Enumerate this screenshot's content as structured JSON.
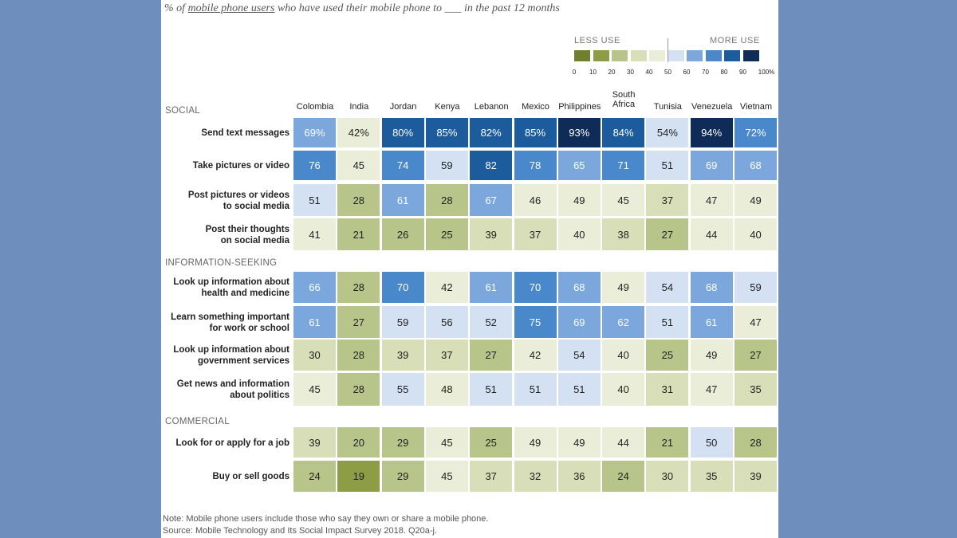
{
  "subtitle": {
    "prefix": "% of ",
    "underlined": "mobile phone users",
    "suffix": " who have used their mobile phone to ___ in the past 12 months"
  },
  "legend": {
    "less_label": "LESS USE",
    "more_label": "MORE USE",
    "colors": [
      "#6f7f2f",
      "#8c9d45",
      "#b8c58a",
      "#d8dfb8",
      "#eaeed8",
      "#d4e1f3",
      "#7ba7dd",
      "#4a88cc",
      "#1d5c9c",
      "#0f2b57"
    ],
    "ticks": [
      "0",
      "10",
      "20",
      "30",
      "40",
      "50",
      "60",
      "70",
      "80",
      "90",
      "100%"
    ]
  },
  "chart_data": {
    "type": "heatmap",
    "title": "% of mobile phone users who have used their mobile phone to ___ in the past 12 months",
    "countries": [
      "Colombia",
      "India",
      "Jordan",
      "Kenya",
      "Lebanon",
      "Mexico",
      "Philippines",
      "South Africa",
      "Tunisia",
      "Venezuela",
      "Vietnam"
    ],
    "sections": [
      {
        "name": "SOCIAL",
        "rows": [
          {
            "label": "Send text messages",
            "values": [
              69,
              42,
              80,
              85,
              82,
              85,
              93,
              84,
              54,
              94,
              72
            ],
            "display": [
              "69%",
              "42%",
              "80%",
              "85%",
              "82%",
              "85%",
              "93%",
              "84%",
              "54%",
              "94%",
              "72%"
            ]
          },
          {
            "label": "Take pictures or video",
            "values": [
              76,
              45,
              74,
              59,
              82,
              78,
              65,
              71,
              51,
              69,
              68
            ],
            "display": [
              "76",
              "45",
              "74",
              "59",
              "82",
              "78",
              "65",
              "71",
              "51",
              "69",
              "68"
            ]
          },
          {
            "label": "Post pictures or videos\nto social media",
            "values": [
              51,
              28,
              61,
              28,
              67,
              46,
              49,
              45,
              37,
              47,
              49
            ],
            "display": [
              "51",
              "28",
              "61",
              "28",
              "67",
              "46",
              "49",
              "45",
              "37",
              "47",
              "49"
            ]
          },
          {
            "label": "Post their thoughts\non social media",
            "values": [
              41,
              21,
              26,
              25,
              39,
              37,
              40,
              38,
              27,
              44,
              40
            ],
            "display": [
              "41",
              "21",
              "26",
              "25",
              "39",
              "37",
              "40",
              "38",
              "27",
              "44",
              "40"
            ]
          }
        ]
      },
      {
        "name": "INFORMATION-SEEKING",
        "rows": [
          {
            "label": "Look up information about\nhealth and medicine",
            "values": [
              66,
              28,
              70,
              42,
              61,
              70,
              68,
              49,
              54,
              68,
              59
            ],
            "display": [
              "66",
              "28",
              "70",
              "42",
              "61",
              "70",
              "68",
              "49",
              "54",
              "68",
              "59"
            ]
          },
          {
            "label": "Learn something important\nfor work or school",
            "values": [
              61,
              27,
              59,
              56,
              52,
              75,
              69,
              62,
              51,
              61,
              47
            ],
            "display": [
              "61",
              "27",
              "59",
              "56",
              "52",
              "75",
              "69",
              "62",
              "51",
              "61",
              "47"
            ]
          },
          {
            "label": "Look up information about\ngovernment services",
            "values": [
              30,
              28,
              39,
              37,
              27,
              42,
              54,
              40,
              25,
              49,
              27
            ],
            "display": [
              "30",
              "28",
              "39",
              "37",
              "27",
              "42",
              "54",
              "40",
              "25",
              "49",
              "27"
            ]
          },
          {
            "label": "Get news and information\nabout politics",
            "values": [
              45,
              28,
              55,
              48,
              51,
              51,
              51,
              40,
              31,
              47,
              35
            ],
            "display": [
              "45",
              "28",
              "55",
              "48",
              "51",
              "51",
              "51",
              "40",
              "31",
              "47",
              "35"
            ]
          }
        ]
      },
      {
        "name": "COMMERCIAL",
        "rows": [
          {
            "label": "Look for or apply for a job",
            "values": [
              39,
              20,
              29,
              45,
              25,
              49,
              49,
              44,
              21,
              50,
              28
            ],
            "display": [
              "39",
              "20",
              "29",
              "45",
              "25",
              "49",
              "49",
              "44",
              "21",
              "50",
              "28"
            ]
          },
          {
            "label": "Buy or sell goods",
            "values": [
              24,
              19,
              29,
              45,
              37,
              32,
              36,
              24,
              30,
              35,
              39
            ],
            "display": [
              "24",
              "19",
              "29",
              "45",
              "37",
              "32",
              "36",
              "24",
              "30",
              "35",
              "39"
            ]
          }
        ]
      }
    ],
    "scale": {
      "min": 0,
      "max": 100,
      "step": 10
    }
  },
  "footer": {
    "note": "Note: Mobile phone users include those who say they own or share a mobile phone.",
    "source": "Source: Mobile Technology and Its Social Impact Survey 2018. Q20a-j."
  }
}
